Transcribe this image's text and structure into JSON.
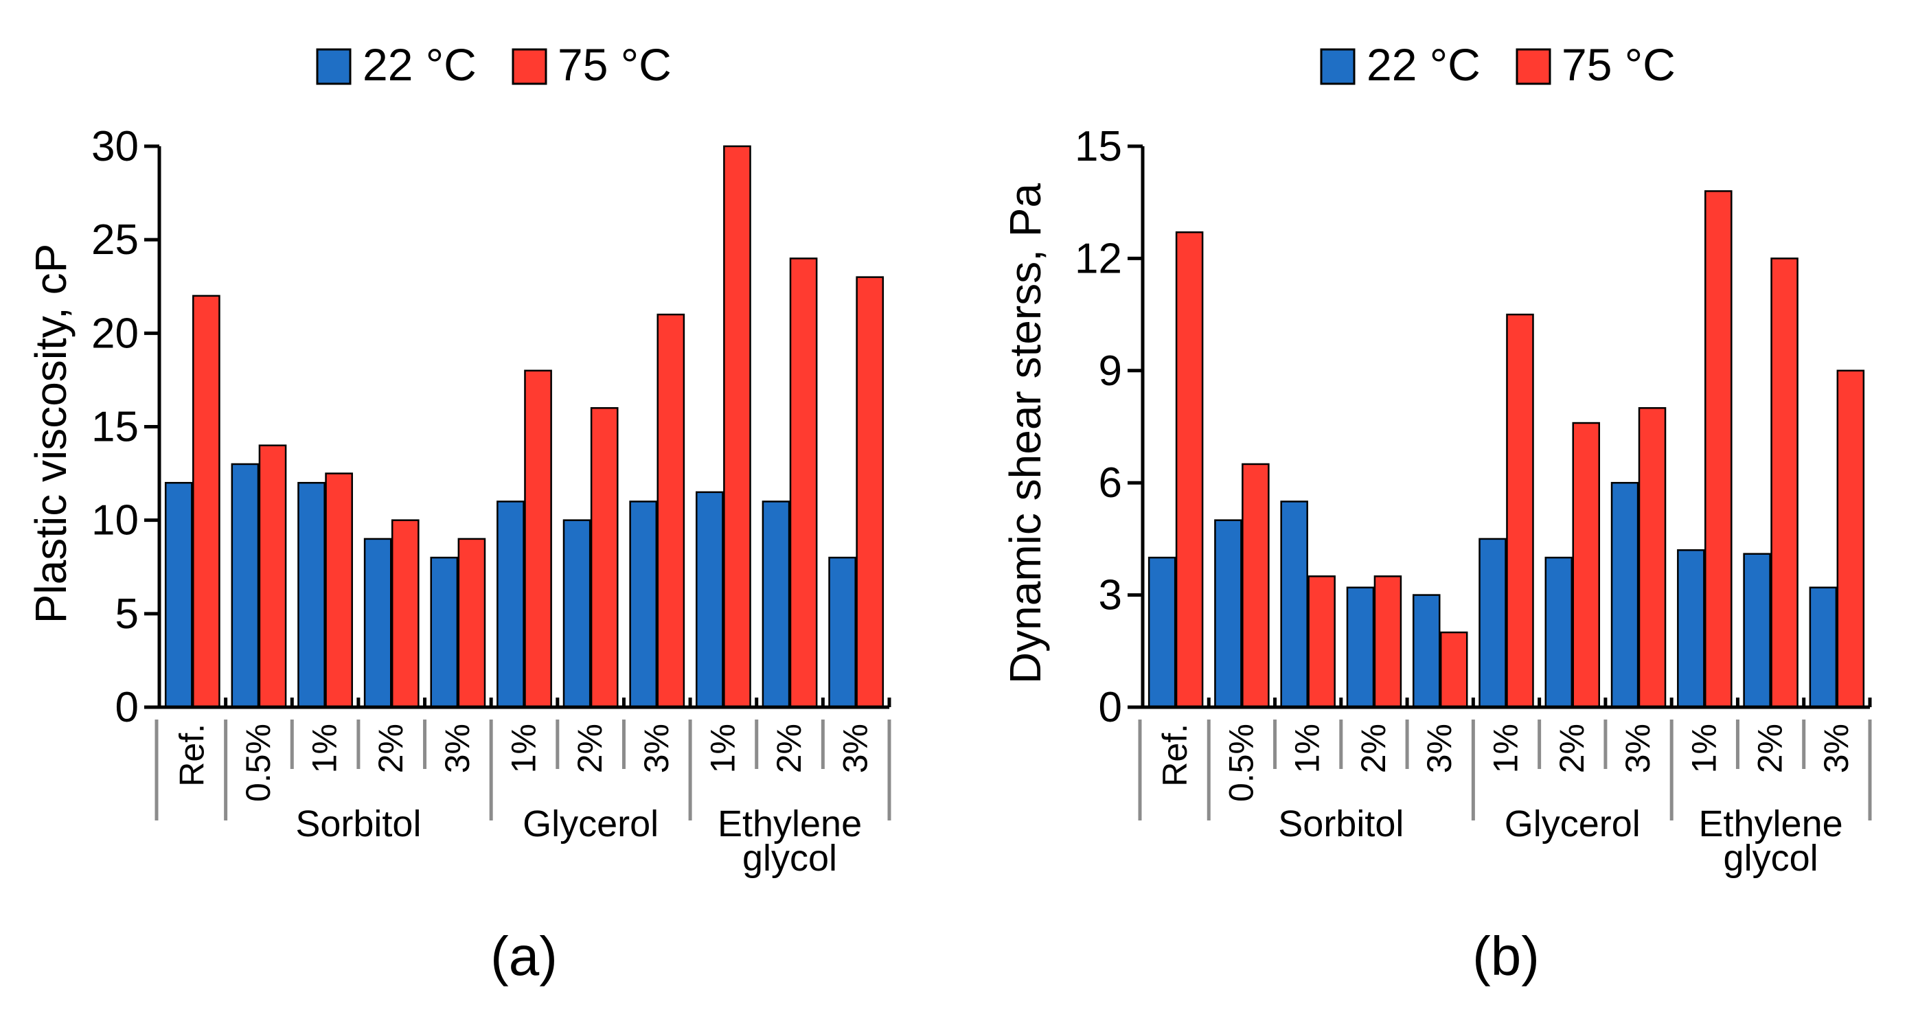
{
  "colors": {
    "series_22": "#1f6fc5",
    "series_75": "#ff3b30",
    "axis": "#000000",
    "group_line": "#8c8c8c"
  },
  "chart_data": [
    {
      "type": "bar",
      "panel_label": "(a)",
      "ylabel": "Plastic viscosity, cP",
      "ylim": [
        0,
        30
      ],
      "yticks": [
        "0",
        "5",
        "10",
        "15",
        "20",
        "25",
        "30"
      ],
      "categories": [
        "Ref.",
        "0.5%",
        "1%",
        "2%",
        "3%",
        "1%",
        "2%",
        "3%",
        "1%",
        "2%",
        "3%"
      ],
      "groups": [
        {
          "label": [
            "Sorbitol"
          ],
          "from": 1,
          "to": 4
        },
        {
          "label": [
            "Glycerol"
          ],
          "from": 5,
          "to": 7
        },
        {
          "label": [
            "Ethylene",
            "glycol"
          ],
          "from": 8,
          "to": 10
        }
      ],
      "legend": [
        "22 °C",
        "75 °C"
      ],
      "series": [
        {
          "name": "22 °C",
          "values": [
            12,
            13,
            12,
            9,
            8,
            11,
            10,
            11,
            11.5,
            11,
            8
          ]
        },
        {
          "name": "75 °C",
          "values": [
            22,
            14,
            12.5,
            10,
            9,
            18,
            16,
            21,
            30,
            24,
            23
          ]
        }
      ]
    },
    {
      "type": "bar",
      "panel_label": "(b)",
      "ylabel": "Dynamic shear sterss, Pa",
      "ylim": [
        0,
        15
      ],
      "yticks": [
        "0",
        "3",
        "6",
        "9",
        "12",
        "15"
      ],
      "categories": [
        "Ref.",
        "0.5%",
        "1%",
        "2%",
        "3%",
        "1%",
        "2%",
        "3%",
        "1%",
        "2%",
        "3%"
      ],
      "groups": [
        {
          "label": [
            "Sorbitol"
          ],
          "from": 1,
          "to": 4
        },
        {
          "label": [
            "Glycerol"
          ],
          "from": 5,
          "to": 7
        },
        {
          "label": [
            "Ethylene",
            "glycol"
          ],
          "from": 8,
          "to": 10
        }
      ],
      "legend": [
        "22 °C",
        "75 °C"
      ],
      "series": [
        {
          "name": "22 °C",
          "values": [
            4,
            5,
            5.5,
            3.2,
            3,
            4.5,
            4,
            6,
            4.2,
            4.1,
            3.2
          ]
        },
        {
          "name": "75 °C",
          "values": [
            12.7,
            6.5,
            3.5,
            3.5,
            2,
            10.5,
            7.6,
            8,
            13.8,
            12,
            9
          ]
        }
      ]
    }
  ]
}
